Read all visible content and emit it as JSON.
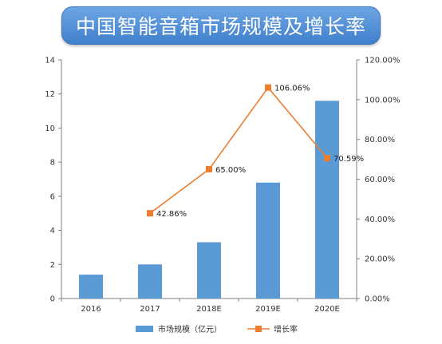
{
  "title": "中国智能音箱市场规模及增长率",
  "colors": {
    "bar": "#5b9bd5",
    "line": "#ed7d31",
    "banner": "#4f8fd8"
  },
  "chart_data": {
    "type": "bar",
    "title": "中国智能音箱市场规模及增长率",
    "categories": [
      "2016",
      "2017",
      "2018E",
      "2019E",
      "2020E"
    ],
    "series": [
      {
        "name": "市场规模（亿元）",
        "type": "bar",
        "axis": "left",
        "values": [
          1.4,
          2.0,
          3.3,
          6.8,
          11.6
        ]
      },
      {
        "name": "增长率",
        "type": "line",
        "axis": "right",
        "values": [
          null,
          42.86,
          65.0,
          106.06,
          70.59
        ]
      }
    ],
    "data_labels": [
      "",
      "42.86%",
      "65.00%",
      "106.06%",
      "70.59%"
    ],
    "y_left": {
      "range": [
        0,
        14
      ],
      "ticks": [
        "0",
        "2",
        "4",
        "6",
        "8",
        "10",
        "12",
        "14"
      ]
    },
    "y_right": {
      "range": [
        0,
        120
      ],
      "ticks": [
        "0.00%",
        "20.00%",
        "40.00%",
        "60.00%",
        "80.00%",
        "100.00%",
        "120.00%"
      ]
    },
    "grid": false,
    "legend": "bottom"
  }
}
